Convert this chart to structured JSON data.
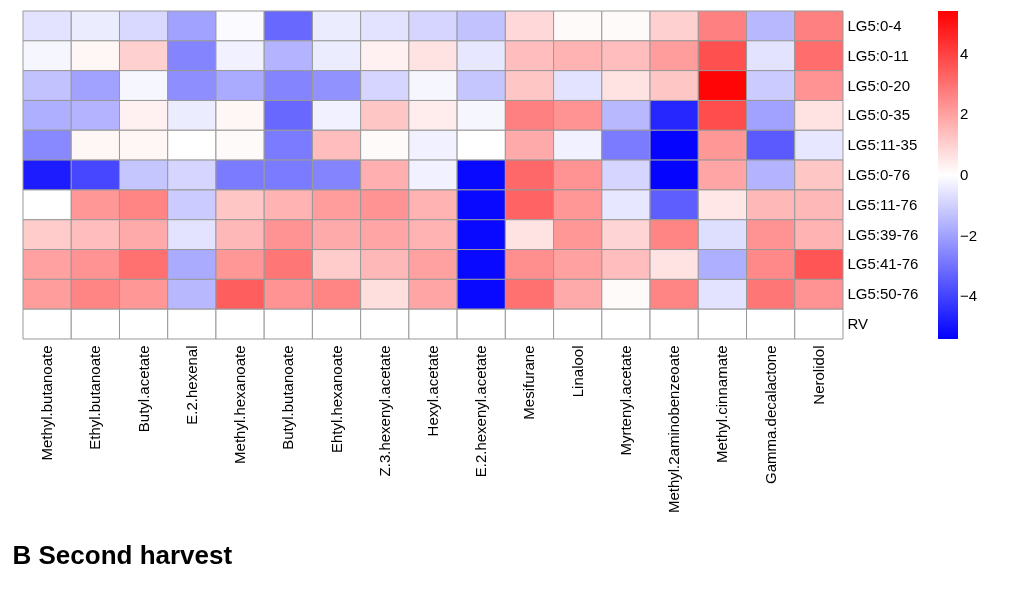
{
  "chart_data": {
    "type": "heatmap",
    "title": "B Second harvest",
    "categories": [
      "Methyl.butanoate",
      "Ethyl.butanoate",
      "Butyl.acetate",
      "E.2.hexenal",
      "Methyl.hexanoate",
      "Butyl.butanoate",
      "Ehtyl.hexanoate",
      "Z.3.hexenyl.acetate",
      "Hexyl.acetate",
      "E.2.hexenyl.acetate",
      "Mesifurane",
      "Linalool",
      "Myrtenyl.acetate",
      "Methyl.2aminobenzeoate",
      "Methyl.cinnamate",
      "Gamma.decalactone",
      "Nerolidol"
    ],
    "y_categories": [
      "LG5:0-4",
      "LG5:0-11",
      "LG5:0-20",
      "LG5:0-35",
      "LG5:11-35",
      "LG5:0-76",
      "LG5:11-76",
      "LG5:39-76",
      "LG5:41-76",
      "LG5:50-76",
      "RV"
    ],
    "cells": [
      [
        -0.6,
        -0.4,
        -0.8,
        -2.0,
        -0.1,
        -3.2,
        -0.4,
        -0.6,
        -0.9,
        -1.3,
        0.8,
        0.1,
        0.1,
        1.0,
        2.7,
        -1.5,
        2.7
      ],
      [
        -0.2,
        0.2,
        1.0,
        -2.6,
        -0.3,
        -1.6,
        -0.4,
        0.3,
        0.6,
        -0.5,
        1.4,
        1.6,
        1.4,
        2.1,
        3.7,
        -0.6,
        3.1
      ],
      [
        -1.3,
        -2.0,
        -0.2,
        -2.4,
        -1.8,
        -2.6,
        -2.3,
        -0.9,
        -0.2,
        -1.2,
        1.2,
        -0.6,
        0.6,
        1.2,
        5.3,
        -1.1,
        2.3
      ],
      [
        -1.7,
        -1.6,
        0.3,
        -0.4,
        0.2,
        -3.2,
        -0.3,
        1.2,
        0.4,
        -0.2,
        2.7,
        2.3,
        -1.5,
        -4.6,
        3.8,
        -2.0,
        0.6
      ],
      [
        -2.5,
        0.2,
        0.2,
        0.0,
        0.1,
        -2.8,
        1.4,
        0.1,
        -0.3,
        0.0,
        1.8,
        -0.3,
        -2.8,
        -5.3,
        2.2,
        -3.5,
        -0.5
      ],
      [
        -4.8,
        -3.9,
        -1.2,
        -0.9,
        -2.8,
        -2.8,
        -2.6,
        1.7,
        -0.3,
        -5.2,
        3.2,
        2.3,
        -0.9,
        -5.3,
        1.9,
        -1.6,
        1.2
      ],
      [
        0.0,
        2.2,
        2.6,
        -1.1,
        1.2,
        1.6,
        2.1,
        2.3,
        1.6,
        -5.2,
        3.3,
        2.2,
        -0.5,
        -3.4,
        0.5,
        1.5,
        1.5
      ],
      [
        1.1,
        1.4,
        1.8,
        -0.6,
        1.5,
        2.3,
        1.8,
        1.9,
        1.6,
        -5.2,
        0.6,
        2.2,
        0.9,
        2.6,
        -0.7,
        2.3,
        1.6
      ],
      [
        2.0,
        2.3,
        3.0,
        -1.8,
        2.2,
        2.9,
        1.1,
        1.5,
        2.0,
        -5.2,
        2.4,
        2.0,
        1.4,
        0.6,
        -1.7,
        2.5,
        3.6
      ],
      [
        2.1,
        2.6,
        2.2,
        -1.5,
        3.4,
        2.3,
        2.6,
        0.7,
        1.9,
        -5.2,
        3.0,
        1.8,
        0.1,
        2.6,
        -0.6,
        2.9,
        2.3
      ],
      [
        0.0,
        0.0,
        0.0,
        0.0,
        0.0,
        0.0,
        0.0,
        0.0,
        0.0,
        0.0,
        0.0,
        0.0,
        0.0,
        0.0,
        0.0,
        0.0,
        0.0
      ]
    ],
    "clim": [
      -5.4,
      5.4
    ],
    "cticks": [
      -4,
      -2,
      0,
      2,
      4
    ]
  }
}
